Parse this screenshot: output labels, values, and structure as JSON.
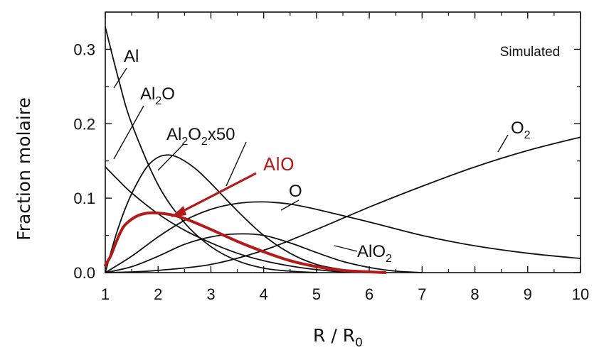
{
  "chart_data": {
    "type": "line",
    "title": "",
    "note": "Simulated",
    "xlabel": {
      "main": "R / R",
      "sub": "0"
    },
    "ylabel": "Fraction molaire",
    "xlim": [
      1,
      10
    ],
    "ylim": [
      0,
      0.35
    ],
    "xticks": [
      "1",
      "2",
      "3",
      "4",
      "5",
      "6",
      "7",
      "8",
      "9",
      "10"
    ],
    "yticks": [
      "0.0",
      "0.1",
      "0.2",
      "0.3"
    ],
    "highlight_color": "#b01c1c",
    "series": [
      {
        "name": "Al",
        "color": "#111111",
        "x": [
          1,
          1.25,
          1.5,
          2,
          2.5,
          3,
          3.5,
          4,
          4.5,
          5
        ],
        "y": [
          0.33,
          0.26,
          0.2,
          0.118,
          0.067,
          0.035,
          0.016,
          0.006,
          0.002,
          0
        ]
      },
      {
        "name": "Al2O",
        "label_main": "Al",
        "label_sub": "2",
        "label_tail": "O",
        "color": "#111111",
        "x": [
          1,
          1.25,
          1.5,
          2,
          2.5,
          3,
          3.5,
          4,
          4.5,
          5,
          5.5,
          6
        ],
        "y": [
          0.142,
          0.124,
          0.107,
          0.079,
          0.057,
          0.04,
          0.026,
          0.016,
          0.009,
          0.004,
          0.001,
          0
        ]
      },
      {
        "name": "Al2O2x50",
        "label_main": "Al",
        "label_sub": "2",
        "label_tail": "O",
        "label_sub2": "2",
        "label_end": "x50",
        "color": "#111111",
        "x": [
          1,
          1.2,
          1.4,
          1.6,
          1.8,
          2,
          2.2,
          2.4,
          2.7,
          3,
          3.5,
          4,
          4.5,
          5,
          5.5,
          6
        ],
        "y": [
          0.0,
          0.05,
          0.09,
          0.12,
          0.143,
          0.155,
          0.158,
          0.154,
          0.14,
          0.12,
          0.083,
          0.05,
          0.026,
          0.011,
          0.004,
          0
        ]
      },
      {
        "name": "AlO",
        "color": "#b01c1c",
        "x": [
          1,
          1.1,
          1.2,
          1.3,
          1.4,
          1.6,
          1.8,
          2,
          2.3,
          2.6,
          3,
          3.5,
          4,
          4.5,
          5,
          5.5,
          6,
          6.3
        ],
        "y": [
          0.01,
          0.022,
          0.04,
          0.056,
          0.066,
          0.076,
          0.08,
          0.08,
          0.077,
          0.07,
          0.058,
          0.042,
          0.028,
          0.016,
          0.008,
          0.003,
          0.001,
          0
        ]
      },
      {
        "name": "O",
        "color": "#111111",
        "x": [
          1,
          1.5,
          2,
          2.5,
          3,
          3.5,
          4,
          4.5,
          5,
          6,
          7,
          8,
          9,
          10
        ],
        "y": [
          0.0,
          0.022,
          0.048,
          0.07,
          0.085,
          0.093,
          0.095,
          0.092,
          0.085,
          0.068,
          0.05,
          0.036,
          0.026,
          0.019
        ]
      },
      {
        "name": "AlO2",
        "label_main": "AlO",
        "label_sub": "2",
        "color": "#111111",
        "x": [
          1,
          1.5,
          2,
          2.5,
          3,
          3.5,
          4,
          4.5,
          5,
          5.5,
          6,
          6.5,
          7
        ],
        "y": [
          0.0,
          0.008,
          0.022,
          0.038,
          0.048,
          0.052,
          0.05,
          0.04,
          0.027,
          0.015,
          0.007,
          0.002,
          0
        ]
      },
      {
        "name": "O2",
        "label_main": "O",
        "label_sub": "2",
        "color": "#111111",
        "x": [
          1,
          1.5,
          2,
          3,
          4,
          5,
          6,
          7,
          8,
          9,
          10
        ],
        "y": [
          0.0,
          0.001,
          0.003,
          0.011,
          0.03,
          0.058,
          0.088,
          0.116,
          0.142,
          0.164,
          0.182
        ]
      }
    ]
  }
}
